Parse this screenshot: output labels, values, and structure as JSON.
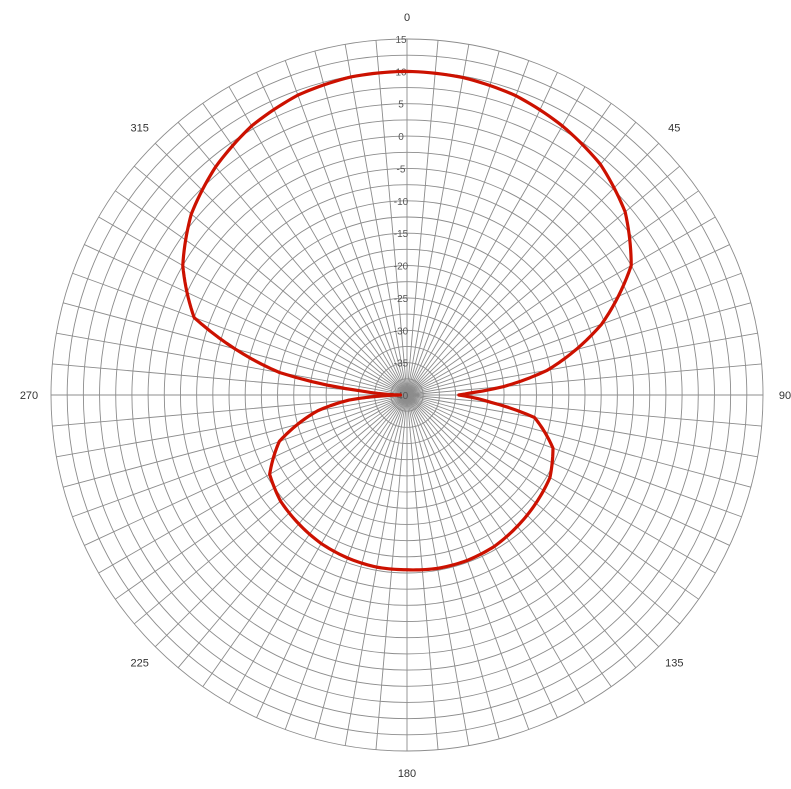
{
  "chart_data": {
    "type": "polar-line",
    "title": "",
    "radial_axis": {
      "min": -40,
      "max": 15,
      "step": 2.5,
      "labels": [
        "15",
        "10",
        "5",
        "0",
        "-5",
        "-10",
        "-15",
        "-20",
        "-25",
        "-30",
        "-35",
        "-40"
      ],
      "label_values": [
        15,
        10,
        5,
        0,
        -5,
        -10,
        -15,
        -20,
        -25,
        -30,
        -35,
        -40
      ]
    },
    "angular_axis": {
      "spoke_step_deg": 5,
      "labels": [
        "0",
        "45",
        "90",
        "135",
        "180",
        "225",
        "270",
        "315"
      ],
      "label_angles": [
        0,
        45,
        90,
        135,
        180,
        225,
        270,
        315
      ],
      "direction": "clockwise",
      "zero_at": "top"
    },
    "grid": true,
    "legend": "none",
    "series": [
      {
        "color": "#cc1100",
        "angles": [
          0,
          10,
          20,
          30,
          40,
          50,
          60,
          70,
          80,
          85,
          88,
          90,
          92,
          95,
          100,
          110,
          120,
          130,
          140,
          150,
          160,
          170,
          180,
          190,
          200,
          210,
          220,
          230,
          240,
          250,
          260,
          265,
          268,
          270,
          272,
          275,
          280,
          290,
          300,
          310,
          320,
          330,
          340,
          350,
          360
        ],
        "values": [
          10,
          9.8,
          9.2,
          8.0,
          6.5,
          4.0,
          0.0,
          -8.0,
          -18.0,
          -25.0,
          -30.0,
          -32.0,
          -30.0,
          -27.0,
          -20.0,
          -16.0,
          -14.5,
          -14.0,
          -13.5,
          -13.0,
          -12.8,
          -12.8,
          -13.0,
          -13.0,
          -13.2,
          -13.5,
          -14.0,
          -14.5,
          -15.5,
          -19.0,
          -26.0,
          -31.0,
          -36.0,
          -39.0,
          -37.0,
          -33.0,
          -20.0,
          -5.0,
          0.0,
          3.5,
          6.0,
          8.0,
          9.3,
          9.9,
          10
        ]
      }
    ]
  }
}
